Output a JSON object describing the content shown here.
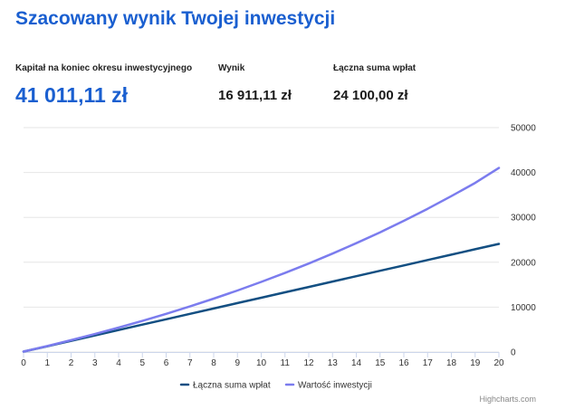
{
  "header": {
    "title": "Szacowany wynik Twojej inwestycji"
  },
  "stats": [
    {
      "label": "Kapitał na koniec okresu inwestycyjnego",
      "value": "41 011,11 zł"
    },
    {
      "label": "Wynik",
      "value": "16 911,11 zł"
    },
    {
      "label": "Łączna suma wpłat",
      "value": "24 100,00 zł"
    }
  ],
  "credits": "Highcharts.com",
  "chart_data": {
    "type": "line",
    "x": [
      0,
      1,
      2,
      3,
      4,
      5,
      6,
      7,
      8,
      9,
      10,
      11,
      12,
      13,
      14,
      15,
      16,
      17,
      18,
      19,
      20
    ],
    "xlim": [
      0,
      20
    ],
    "ylim": [
      0,
      50000
    ],
    "yticks": [
      0,
      10000,
      20000,
      30000,
      40000,
      50000
    ],
    "yaxis_side": "right",
    "grid": "horizontal",
    "legend": "bottom-center",
    "series": [
      {
        "name": "Łączna suma wpłat",
        "color": "#134f82",
        "values": [
          100,
          1300,
          2500,
          3700,
          4900,
          6100,
          7300,
          8500,
          9700,
          10900,
          12100,
          13300,
          14500,
          15700,
          16900,
          18100,
          19300,
          20500,
          21700,
          22900,
          24100
        ]
      },
      {
        "name": "Wartość inwestycji",
        "color": "#7b7cee",
        "values": [
          100,
          1340,
          2650,
          4010,
          5440,
          6940,
          8510,
          10160,
          11890,
          13710,
          15620,
          17620,
          19720,
          21930,
          24250,
          26680,
          29230,
          31910,
          34730,
          37690,
          41011
        ]
      }
    ]
  }
}
